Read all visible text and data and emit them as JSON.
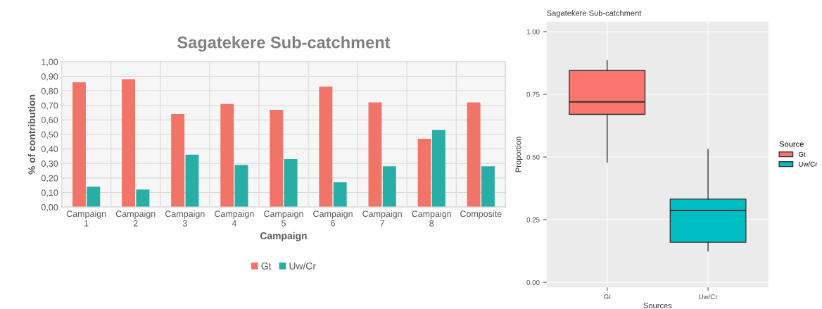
{
  "chart_data": [
    {
      "type": "bar",
      "title": "Sagatekere Sub-catchment",
      "xlabel": "Campaign",
      "ylabel": "% of contribution",
      "categories": [
        "Campaign\n1",
        "Campaign\n2",
        "Campaign\n3",
        "Campaign\n4",
        "Campaign\n5",
        "Campaign\n6",
        "Campaign\n7",
        "Campaign\n8",
        "Composite"
      ],
      "series": [
        {
          "name": "Gt",
          "color": "#f07467",
          "values": [
            0.86,
            0.88,
            0.64,
            0.71,
            0.67,
            0.83,
            0.72,
            0.47,
            0.72
          ]
        },
        {
          "name": "Uw/Cr",
          "color": "#2aada4",
          "values": [
            0.14,
            0.12,
            0.36,
            0.29,
            0.33,
            0.17,
            0.28,
            0.53,
            0.28
          ]
        }
      ],
      "ylim": [
        0,
        1
      ],
      "yticks": [
        {
          "value": 0,
          "label": "0,00"
        },
        {
          "value": 0.1,
          "label": "0,10"
        },
        {
          "value": 0.2,
          "label": "0,20"
        },
        {
          "value": 0.3,
          "label": "0,30"
        },
        {
          "value": 0.4,
          "label": "0,40"
        },
        {
          "value": 0.5,
          "label": "0,50"
        },
        {
          "value": 0.6,
          "label": "0,60"
        },
        {
          "value": 0.7,
          "label": "0,70"
        },
        {
          "value": 0.8,
          "label": "0,80"
        },
        {
          "value": 0.9,
          "label": "0,90"
        },
        {
          "value": 1,
          "label": "1,00"
        }
      ],
      "grid": "y",
      "legend": "bottom"
    },
    {
      "type": "box",
      "title": "Sagatekere Sub-catchment",
      "xlabel": "Sources",
      "ylabel": "Proportion",
      "legend_title": "Source",
      "categories": [
        "Gt",
        "Uw/Cr"
      ],
      "series": [
        {
          "name": "Gt",
          "color": "#f8766d",
          "boxes": [
            {
              "low": 0.48,
              "q1": 0.67,
              "median": 0.72,
              "q3": 0.845,
              "high": 0.885
            },
            null
          ]
        },
        {
          "name": "Uw/Cr",
          "color": "#00bfc4",
          "boxes": [
            null,
            {
              "low": 0.125,
              "q1": 0.16,
              "median": 0.287,
              "q3": 0.332,
              "high": 0.53
            }
          ]
        }
      ],
      "ylim": [
        -0.02,
        1.04
      ],
      "yticks": [
        {
          "value": 0,
          "label": "0.00"
        },
        {
          "value": 0.25,
          "label": "0.25"
        },
        {
          "value": 0.5,
          "label": "0.50"
        },
        {
          "value": 0.75,
          "label": "0.75"
        },
        {
          "value": 1,
          "label": "1.00"
        }
      ],
      "grid": true,
      "legend": "right"
    }
  ]
}
